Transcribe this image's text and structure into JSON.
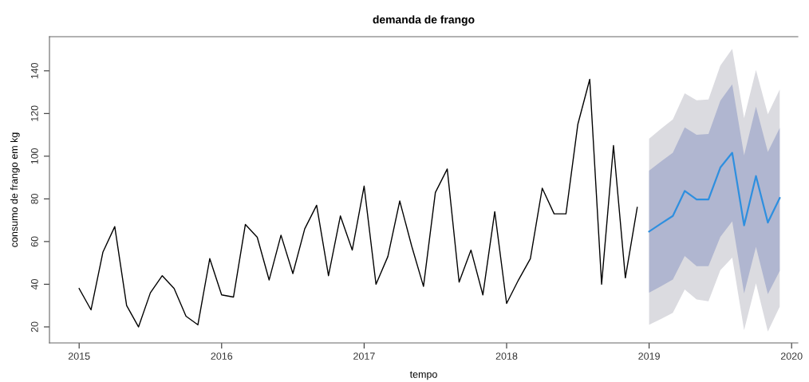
{
  "chart_data": {
    "type": "line",
    "title": "demanda de frango",
    "xlabel": "tempo",
    "ylabel": "consumo de frango em kg",
    "xlim": [
      "2014-10-17",
      "2020-01-17"
    ],
    "xticks": [
      {
        "value": "2015",
        "label": "2015"
      },
      {
        "value": "2016",
        "label": "2016"
      },
      {
        "value": "2017",
        "label": "2017"
      },
      {
        "value": "2018",
        "label": "2018"
      },
      {
        "value": "2019",
        "label": "2019"
      },
      {
        "value": "2020",
        "label": "2020"
      }
    ],
    "ylim": [
      12.5,
      156
    ],
    "yticks": [
      20,
      40,
      60,
      80,
      100,
      120,
      140
    ],
    "grid": false,
    "legend": false,
    "series": [
      {
        "type": "area",
        "color": "#dbdbe0",
        "x": [
          "2019-01",
          "2019-02",
          "2019-03",
          "2019-04",
          "2019-05",
          "2019-06",
          "2019-07",
          "2019-08",
          "2019-09",
          "2019-10",
          "2019-11",
          "2019-12"
        ],
        "values": [
          null,
          null,
          null,
          null,
          null,
          null,
          null,
          null,
          null,
          null,
          null,
          null
        ],
        "lower": [
          21,
          23.7,
          26.6,
          37.5,
          32.9,
          32,
          46.6,
          52.5,
          18.5,
          40.4,
          17.8,
          29.5
        ],
        "upper": [
          108.2,
          112.8,
          117.2,
          129.5,
          126.2,
          126.6,
          142.5,
          150.3,
          117.9,
          140.4,
          119.7,
          131.2
        ]
      },
      {
        "color": "#000000",
        "x": [
          "2015-01",
          "2015-02",
          "2015-03",
          "2015-04",
          "2015-05",
          "2015-06",
          "2015-07",
          "2015-08",
          "2015-09",
          "2015-10",
          "2015-11",
          "2015-12",
          "2016-01",
          "2016-02",
          "2016-03",
          "2016-04",
          "2016-05",
          "2016-06",
          "2016-07",
          "2016-08",
          "2016-09",
          "2016-10",
          "2016-11",
          "2016-12",
          "2017-01",
          "2017-02",
          "2017-03",
          "2017-04",
          "2017-05",
          "2017-06",
          "2017-07",
          "2017-08",
          "2017-09",
          "2017-10",
          "2017-11",
          "2017-12",
          "2018-01",
          "2018-02",
          "2018-03",
          "2018-04",
          "2018-05",
          "2018-06",
          "2018-07",
          "2018-08",
          "2018-09",
          "2018-10",
          "2018-11",
          "2018-12"
        ],
        "values": [
          38,
          28,
          55,
          67,
          30,
          20,
          36,
          44,
          38,
          25,
          21,
          52,
          35,
          34,
          68,
          62,
          42,
          63,
          45,
          66,
          77,
          44,
          72,
          56,
          86,
          40,
          53,
          79,
          58,
          39,
          83,
          94,
          41,
          56,
          35,
          74,
          31,
          42,
          52,
          85,
          73,
          73,
          115,
          136,
          40,
          105,
          43,
          76
        ]
      },
      {
        "type": "area",
        "color": "#b0b6d0",
        "x": [
          "2019-01",
          "2019-02",
          "2019-03",
          "2019-04",
          "2019-05",
          "2019-06",
          "2019-07",
          "2019-08",
          "2019-09",
          "2019-10",
          "2019-11",
          "2019-12"
        ],
        "values": [
          null,
          null,
          null,
          null,
          null,
          null,
          null,
          null,
          null,
          null,
          null,
          null
        ],
        "lower": [
          36,
          39,
          42.2,
          53.2,
          48.5,
          48.5,
          62.2,
          69.5,
          35.7,
          57.5,
          35.4,
          46.2
        ],
        "upper": [
          93.2,
          97.5,
          101.6,
          113.5,
          110,
          110.4,
          126,
          133.7,
          100.4,
          123.2,
          102,
          113.2
        ]
      },
      {
        "color": "#2e8fdf",
        "x": [
          "2019-01",
          "2019-02",
          "2019-03",
          "2019-04",
          "2019-05",
          "2019-06",
          "2019-07",
          "2019-08",
          "2019-09",
          "2019-10",
          "2019-11",
          "2019-12"
        ],
        "values": [
          64.7,
          68.4,
          72,
          83.7,
          79.7,
          79.7,
          94.7,
          101.6,
          67.6,
          90.7,
          68.9,
          80.4
        ]
      }
    ]
  }
}
